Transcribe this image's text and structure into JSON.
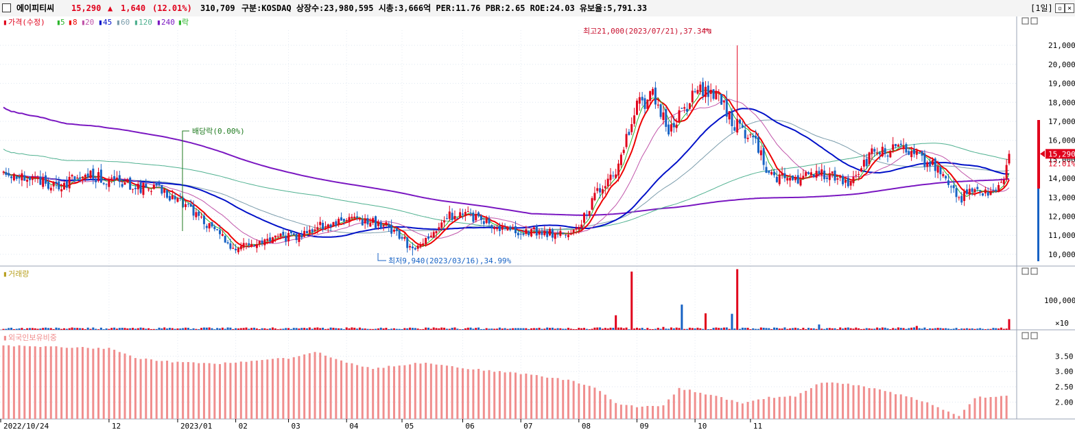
{
  "header": {
    "name": "에이피티씨",
    "price": "15,290",
    "change_arrow": "▲",
    "change": "1,640",
    "change_pct": "(12.01%)",
    "volume": "310,709",
    "info": "구분:KOSDAQ 상장수:23,980,595 시총:3,666억 PER:11.76 PBR:2.65 ROE:24.03 유보율:5,791.33",
    "period": "[1일]"
  },
  "legend": {
    "price": "가격(수정)",
    "ma": [
      "5",
      "8",
      "20",
      "45",
      "60",
      "120",
      "240"
    ],
    "fall": "락",
    "volume": "거래량",
    "foreign": "외국인보유비중"
  },
  "annotations": {
    "high": "최고21,000(2023/07/21),37.34%",
    "low": "최저9,940(2023/03/16),34.99%",
    "dividend": "배당락(0.00%)"
  },
  "colors": {
    "up": "#e0001b",
    "down": "#1762c4",
    "ma5": "#2ab52a",
    "ma8": "#ee0000",
    "ma20": "#c054a9",
    "ma45": "#0010c8",
    "ma60": "#7a9cab",
    "ma120": "#4eb08f",
    "ma240": "#7a17c1",
    "foreign_bar": "#f08e8e"
  },
  "chart_data": [
    {
      "type": "candlestick",
      "panel": "price",
      "y_ticks": [
        "21,000",
        "20,000",
        "19,000",
        "18,000",
        "17,000",
        "16,000",
        "15,000",
        "14,000",
        "13,000",
        "12,000",
        "11,000",
        "10,000"
      ],
      "ylim": [
        9600,
        21800
      ],
      "x_ticks": [
        "2022/10/24",
        "12",
        "2023/01",
        "02",
        "03",
        "04",
        "05",
        "06",
        "07",
        "08",
        "09",
        "10",
        "11"
      ],
      "current_price_label": "15,290",
      "current_change_label": "12.01%",
      "close_path": [
        [
          0,
          14400
        ],
        [
          10,
          14000
        ],
        [
          20,
          13600
        ],
        [
          32,
          14200
        ],
        [
          45,
          13700
        ],
        [
          60,
          13300
        ],
        [
          70,
          12500
        ],
        [
          80,
          11200
        ],
        [
          88,
          10300
        ],
        [
          100,
          10800
        ],
        [
          110,
          10900
        ],
        [
          118,
          11400
        ],
        [
          125,
          11600
        ],
        [
          135,
          11800
        ],
        [
          145,
          11500
        ],
        [
          150,
          11000
        ],
        [
          155,
          10200
        ],
        [
          162,
          10900
        ],
        [
          168,
          12000
        ],
        [
          175,
          12100
        ],
        [
          182,
          11800
        ],
        [
          190,
          11300
        ],
        [
          200,
          11200
        ],
        [
          210,
          11100
        ],
        [
          217,
          11300
        ],
        [
          224,
          13000
        ],
        [
          232,
          14500
        ],
        [
          240,
          17800
        ],
        [
          246,
          18300
        ],
        [
          252,
          16600
        ],
        [
          258,
          17700
        ],
        [
          264,
          18800
        ],
        [
          270,
          18400
        ],
        [
          276,
          17000
        ],
        [
          284,
          16100
        ],
        [
          290,
          14200
        ],
        [
          300,
          13900
        ],
        [
          310,
          14300
        ],
        [
          320,
          13800
        ],
        [
          330,
          15400
        ],
        [
          340,
          15500
        ],
        [
          348,
          15000
        ],
        [
          356,
          14300
        ],
        [
          362,
          12900
        ],
        [
          368,
          13300
        ],
        [
          374,
          13100
        ],
        [
          378,
          13600
        ],
        [
          381,
          15290
        ]
      ],
      "series": [
        {
          "name": "5",
          "window": 5
        },
        {
          "name": "8",
          "window": 8
        },
        {
          "name": "20",
          "window": 20
        },
        {
          "name": "45",
          "window": 45
        },
        {
          "name": "60",
          "window": 60
        },
        {
          "name": "120",
          "window": 120
        },
        {
          "name": "240",
          "window": 240
        }
      ]
    },
    {
      "type": "bar",
      "panel": "volume",
      "title": "거래량",
      "y_ticks": [
        "100,000",
        "×10"
      ],
      "spikes": [
        [
          232,
          30000
        ],
        [
          238,
          120000
        ],
        [
          250,
          6000
        ],
        [
          257,
          52000
        ],
        [
          266,
          34000
        ],
        [
          276,
          33000
        ],
        [
          278,
          125000
        ],
        [
          309,
          11000
        ],
        [
          346,
          8000
        ],
        [
          381,
          22000
        ]
      ]
    },
    {
      "type": "bar",
      "panel": "foreign",
      "title": "외국인보유비중",
      "y_ticks": [
        "3.50",
        "3.00",
        "2.50",
        "2.00"
      ],
      "ylim": [
        1.45,
        4.0
      ],
      "path": [
        [
          0,
          3.85
        ],
        [
          20,
          3.8
        ],
        [
          40,
          3.75
        ],
        [
          50,
          3.45
        ],
        [
          65,
          3.3
        ],
        [
          80,
          3.25
        ],
        [
          95,
          3.35
        ],
        [
          110,
          3.45
        ],
        [
          118,
          3.65
        ],
        [
          128,
          3.35
        ],
        [
          140,
          3.1
        ],
        [
          160,
          3.3
        ],
        [
          175,
          3.1
        ],
        [
          200,
          2.9
        ],
        [
          215,
          2.7
        ],
        [
          225,
          2.45
        ],
        [
          232,
          1.95
        ],
        [
          240,
          1.85
        ],
        [
          250,
          1.9
        ],
        [
          256,
          2.45
        ],
        [
          262,
          2.35
        ],
        [
          272,
          2.15
        ],
        [
          280,
          1.95
        ],
        [
          290,
          2.15
        ],
        [
          300,
          2.2
        ],
        [
          310,
          2.65
        ],
        [
          320,
          2.6
        ],
        [
          335,
          2.35
        ],
        [
          348,
          2.05
        ],
        [
          362,
          1.55
        ],
        [
          368,
          2.15
        ],
        [
          381,
          2.2
        ]
      ]
    }
  ]
}
